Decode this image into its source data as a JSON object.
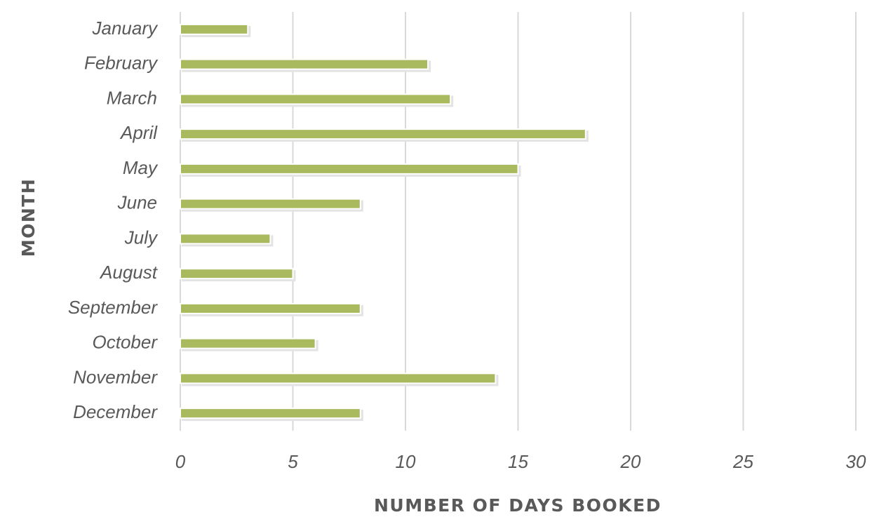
{
  "chart_data": {
    "type": "bar",
    "orientation": "horizontal",
    "x_label": "NUMBER OF DAYS BOOKED",
    "y_label": "MONTH",
    "categories": [
      "January",
      "February",
      "March",
      "April",
      "May",
      "June",
      "July",
      "August",
      "September",
      "October",
      "November",
      "December"
    ],
    "values": [
      3,
      11,
      12,
      18,
      15,
      8,
      4,
      5,
      8,
      6,
      14,
      8
    ],
    "color": "#a9b95e",
    "xlim": [
      0,
      30
    ],
    "xticks": [
      0,
      5,
      10,
      15,
      20,
      25,
      30
    ],
    "grid": true
  }
}
